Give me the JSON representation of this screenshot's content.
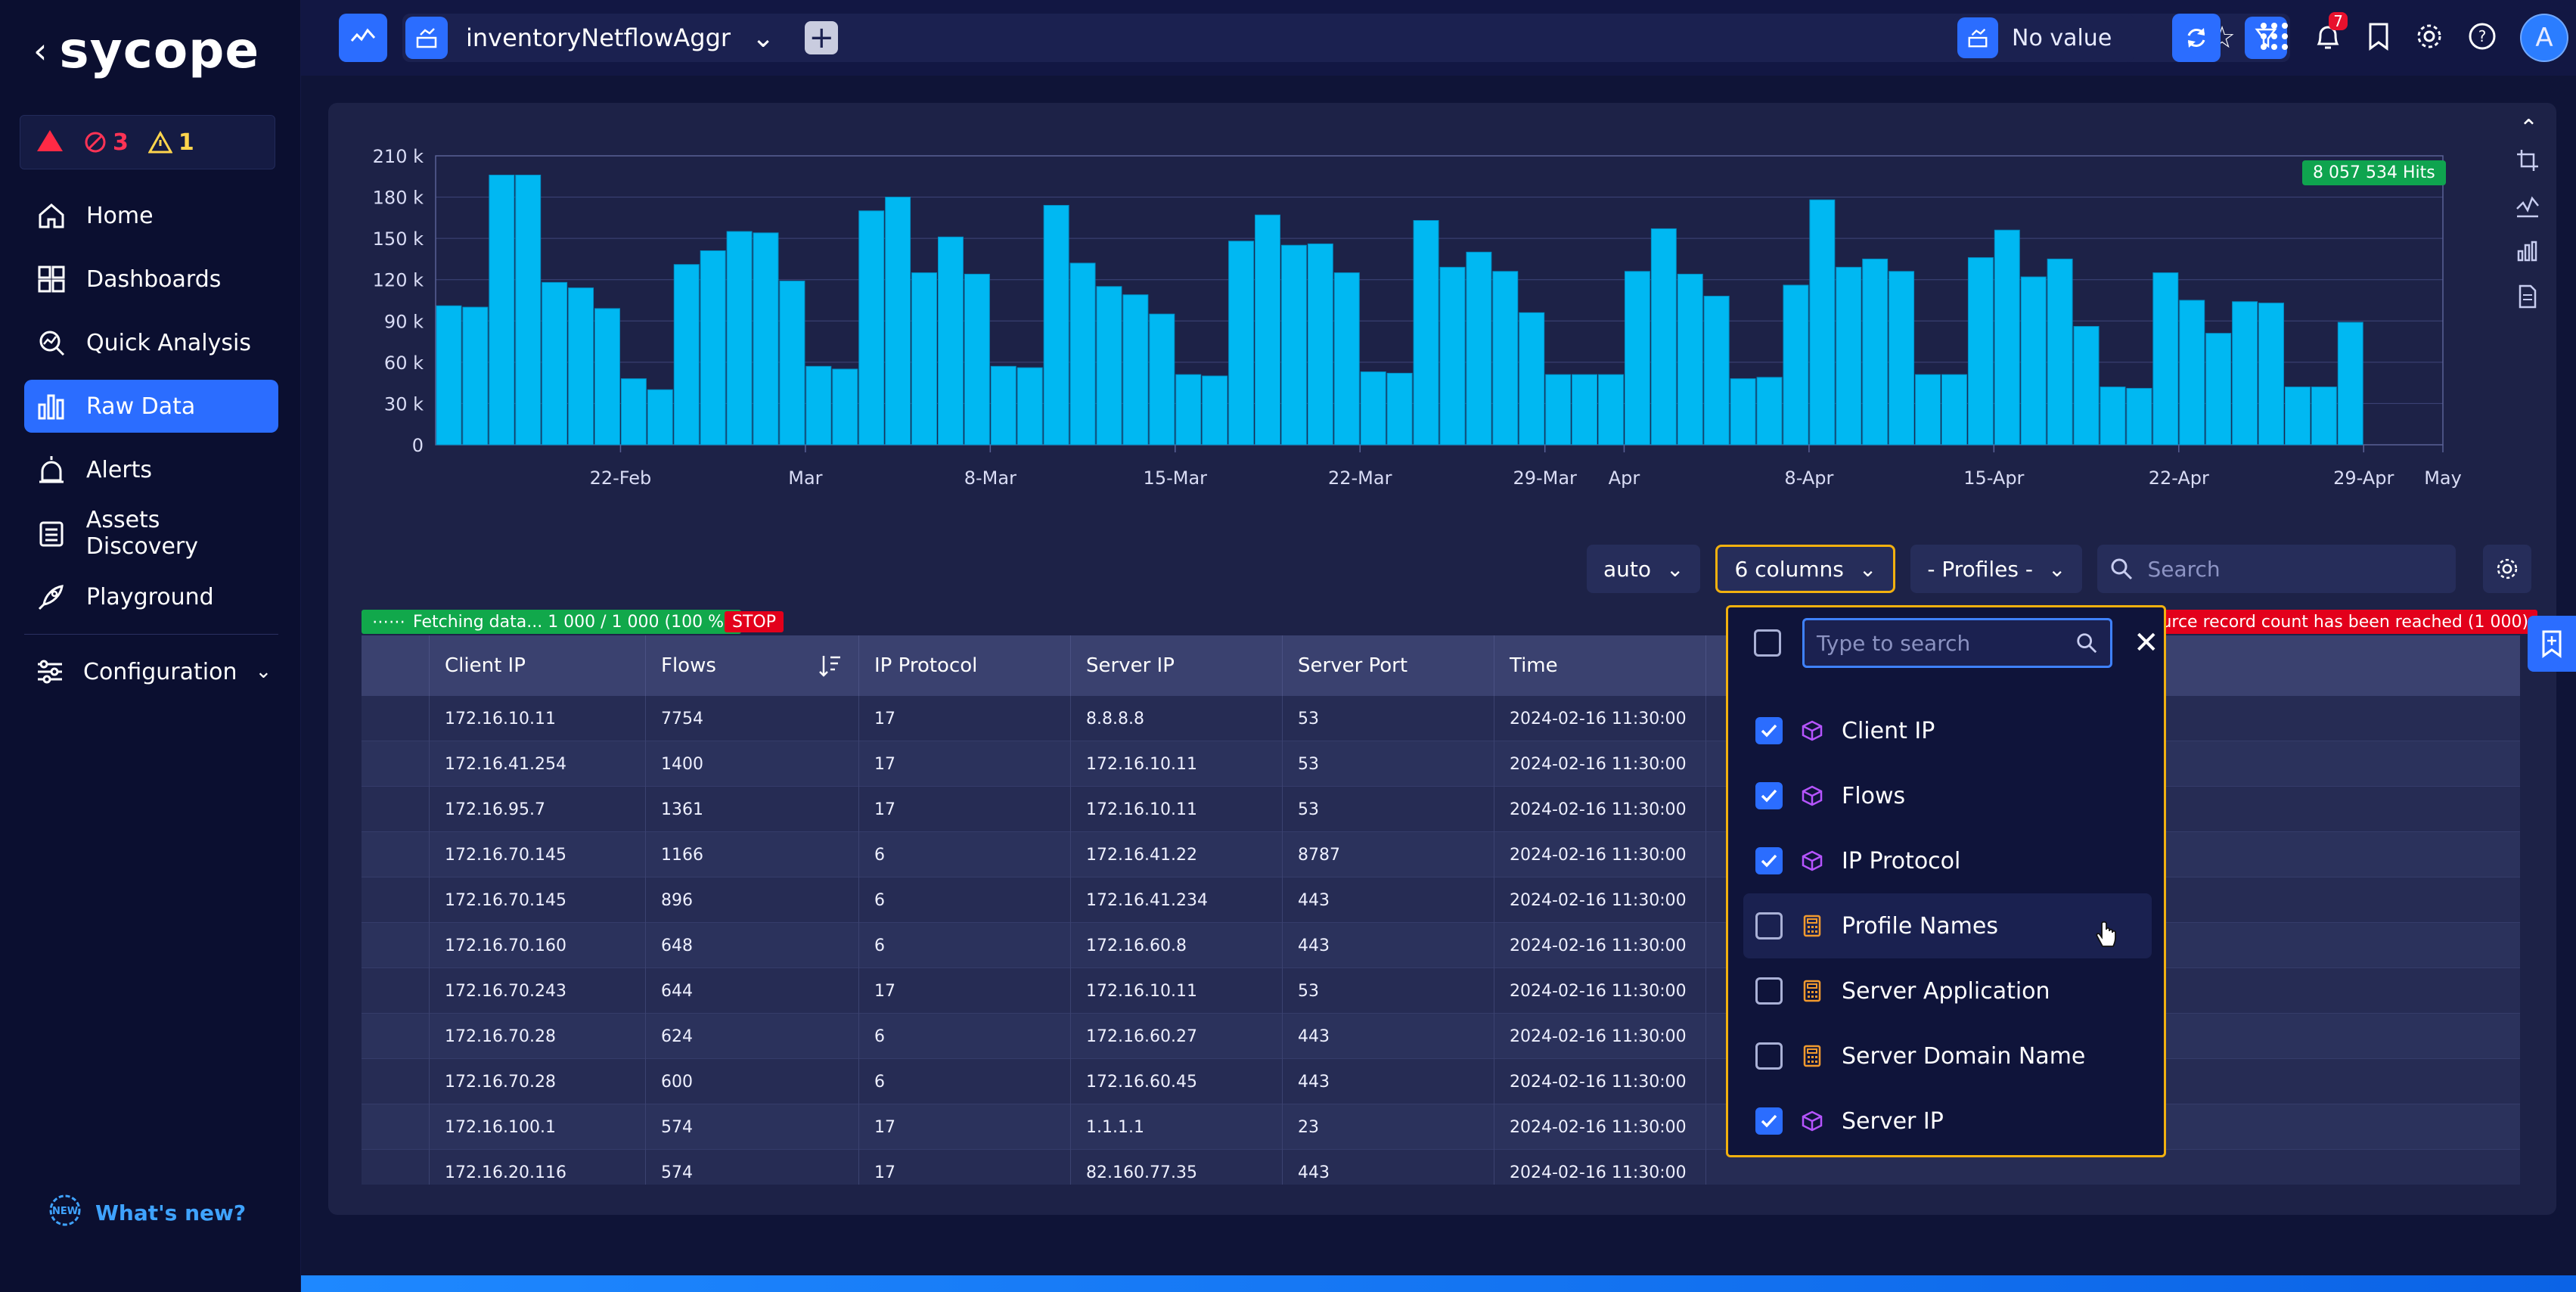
{
  "brand": {
    "name": "sycope"
  },
  "alerts": {
    "red_count": "3",
    "yellow_count": "1"
  },
  "sidebar": {
    "items": [
      {
        "label": "Home",
        "icon": "home-icon"
      },
      {
        "label": "Dashboards",
        "icon": "dashboard-icon"
      },
      {
        "label": "Quick Analysis",
        "icon": "quick-analysis-icon"
      },
      {
        "label": "Raw Data",
        "icon": "raw-data-icon",
        "active": true
      },
      {
        "label": "Alerts",
        "icon": "alarm-icon"
      },
      {
        "label": "Assets Discovery",
        "icon": "assets-icon"
      },
      {
        "label": "Playground",
        "icon": "rocket-icon"
      },
      {
        "label": "Configuration",
        "icon": "sliders-icon"
      }
    ],
    "whats_new": "What's new?"
  },
  "topbar": {
    "datasource": "inventoryNetflowAggr",
    "filter_value": "No value",
    "notifications": "7",
    "avatar": "A"
  },
  "chart_data": {
    "type": "bar",
    "title": "",
    "ylabel": "",
    "ylim": [
      0,
      210000
    ],
    "yticks": [
      "0",
      "30 k",
      "60 k",
      "90 k",
      "120 k",
      "150 k",
      "180 k",
      "210 k"
    ],
    "xticks": [
      {
        "label": "22-Feb",
        "index": 7
      },
      {
        "label": "Mar",
        "index": 14
      },
      {
        "label": "8-Mar",
        "index": 21
      },
      {
        "label": "15-Mar",
        "index": 28
      },
      {
        "label": "22-Mar",
        "index": 35
      },
      {
        "label": "29-Mar",
        "index": 42
      },
      {
        "label": "Apr",
        "index": 45
      },
      {
        "label": "8-Apr",
        "index": 52
      },
      {
        "label": "15-Apr",
        "index": 59
      },
      {
        "label": "22-Apr",
        "index": 66
      },
      {
        "label": "29-Apr",
        "index": 73
      },
      {
        "label": "May",
        "index": 76
      }
    ],
    "values": [
      101000,
      100000,
      196000,
      196000,
      118000,
      114000,
      99000,
      48000,
      40000,
      131000,
      141000,
      155000,
      154000,
      119000,
      57000,
      55000,
      170000,
      180000,
      125000,
      151000,
      124000,
      57000,
      56000,
      174000,
      132000,
      115000,
      109000,
      95000,
      51000,
      50000,
      148000,
      167000,
      145000,
      146000,
      125000,
      53000,
      52000,
      163000,
      129000,
      140000,
      126000,
      96000,
      51000,
      51000,
      51000,
      126000,
      157000,
      124000,
      108000,
      48000,
      49000,
      116000,
      178000,
      129000,
      135000,
      126000,
      51000,
      51000,
      136000,
      156000,
      122000,
      135000,
      86000,
      42000,
      41000,
      125000,
      105000,
      81000,
      104000,
      103000,
      42000,
      42000,
      89000
    ],
    "hits_label": "8 057 534 Hits"
  },
  "controls": {
    "interval": "auto",
    "columns": "6 columns",
    "profiles": "- Profiles -",
    "search_placeholder": "Search"
  },
  "status": {
    "fetch": "Fetching data... 1 000 / 1 000 (100 %)",
    "stop": "STOP",
    "limit": "ource record count has been reached (1 000)"
  },
  "table": {
    "headers": [
      "",
      "Client IP",
      "Flows",
      "IP Protocol",
      "Server IP",
      "Server Port",
      "Time"
    ],
    "rows": [
      [
        "172.16.10.11",
        "7754",
        "17",
        "8.8.8.8",
        "53",
        "2024-02-16 11:30:00"
      ],
      [
        "172.16.41.254",
        "1400",
        "17",
        "172.16.10.11",
        "53",
        "2024-02-16 11:30:00"
      ],
      [
        "172.16.95.7",
        "1361",
        "17",
        "172.16.10.11",
        "53",
        "2024-02-16 11:30:00"
      ],
      [
        "172.16.70.145",
        "1166",
        "6",
        "172.16.41.22",
        "8787",
        "2024-02-16 11:30:00"
      ],
      [
        "172.16.70.145",
        "896",
        "6",
        "172.16.41.234",
        "443",
        "2024-02-16 11:30:00"
      ],
      [
        "172.16.70.160",
        "648",
        "6",
        "172.16.60.8",
        "443",
        "2024-02-16 11:30:00"
      ],
      [
        "172.16.70.243",
        "644",
        "17",
        "172.16.10.11",
        "53",
        "2024-02-16 11:30:00"
      ],
      [
        "172.16.70.28",
        "624",
        "6",
        "172.16.60.27",
        "443",
        "2024-02-16 11:30:00"
      ],
      [
        "172.16.70.28",
        "600",
        "6",
        "172.16.60.45",
        "443",
        "2024-02-16 11:30:00"
      ],
      [
        "172.16.100.1",
        "574",
        "17",
        "1.1.1.1",
        "23",
        "2024-02-16 11:30:00"
      ],
      [
        "172.16.20.116",
        "574",
        "17",
        "82.160.77.35",
        "443",
        "2024-02-16 11:30:00"
      ]
    ]
  },
  "dropdown": {
    "search_placeholder": "Type to search",
    "items": [
      {
        "label": "Client IP",
        "checked": true,
        "kind": "cube"
      },
      {
        "label": "Flows",
        "checked": true,
        "kind": "cube"
      },
      {
        "label": "IP Protocol",
        "checked": true,
        "kind": "cube"
      },
      {
        "label": "Profile Names",
        "checked": false,
        "kind": "calc"
      },
      {
        "label": "Server Application",
        "checked": false,
        "kind": "calc"
      },
      {
        "label": "Server Domain Name",
        "checked": false,
        "kind": "calc"
      },
      {
        "label": "Server IP",
        "checked": true,
        "kind": "cube"
      }
    ]
  },
  "colors": {
    "accent": "#2b6dff",
    "bar": "#00b7f1",
    "highlight": "#f2b10f"
  }
}
